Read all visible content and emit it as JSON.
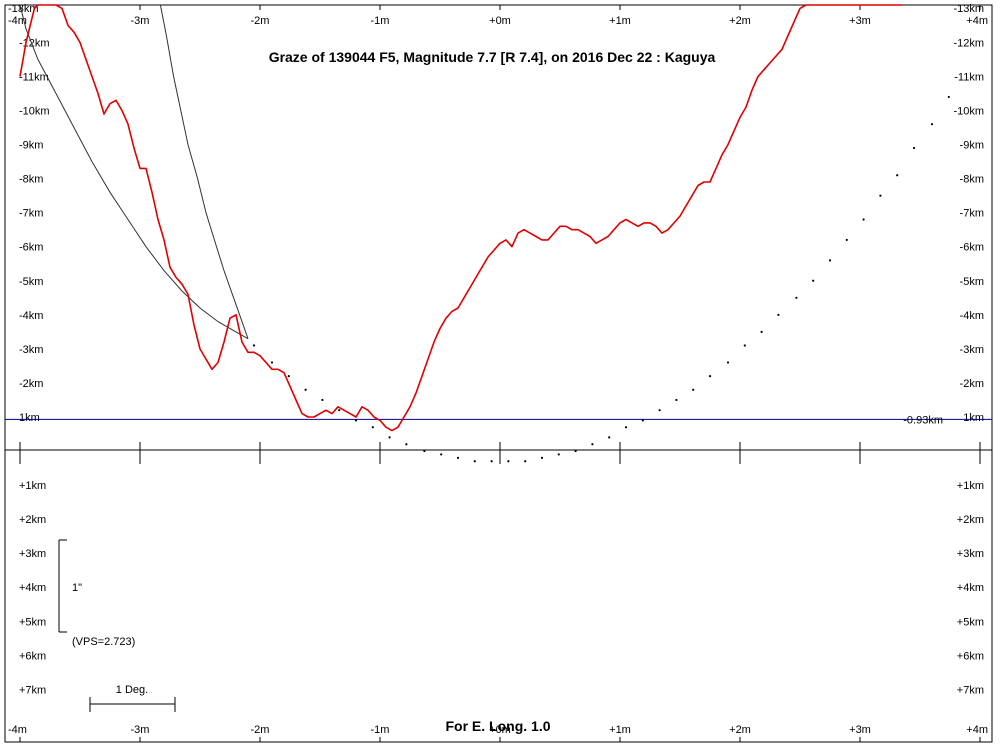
{
  "chart_data": {
    "type": "line",
    "title": "Graze of  139044 F5,  Magnitude 7.7 [R 7.4],  on 2016 Dec 22  :  Kaguya",
    "footer": "For E. Long. 1.0",
    "x_tick_labels": [
      "-4m",
      "-3m",
      "-2m",
      "-1m",
      "+0m",
      "+1m",
      "+2m",
      "+3m",
      "+4m"
    ],
    "x_ticks": [
      -4,
      -3,
      -2,
      -1,
      0,
      1,
      2,
      3,
      4
    ],
    "xlim": [
      -4,
      4
    ],
    "upper_y_tick_labels": [
      "-13km",
      "-12km",
      "-11km",
      "-10km",
      "-9km",
      "-8km",
      "-7km",
      "-6km",
      "-5km",
      "-4km",
      "-3km",
      "-2km",
      "1km"
    ],
    "upper_y_ticks": [
      13,
      12,
      11,
      10,
      9,
      8,
      7,
      6,
      5,
      4,
      3,
      2,
      1
    ],
    "lower_y_tick_labels": [
      "+1km",
      "+2km",
      "+3km",
      "+4km",
      "+5km",
      "+6km",
      "+7km"
    ],
    "lower_y_ticks": [
      -1,
      -2,
      -3,
      -4,
      -5,
      -6,
      -7
    ],
    "ylim": [
      -7.9,
      13.1
    ],
    "reference_line": {
      "y_km": 0.93,
      "label": "-0.93km"
    },
    "scale_annotation": {
      "label": "1\"",
      "vps_label": "(VPS=2.723)"
    },
    "deg_scale_label": "1 Deg.",
    "limb_profile": {
      "name": "lunar limb profile",
      "color": "#e00000",
      "x": [
        -4.0,
        -3.95,
        -3.88,
        -3.85,
        -3.8,
        -3.75,
        -3.7,
        -3.65,
        -3.6,
        -3.55,
        -3.5,
        -3.45,
        -3.4,
        -3.35,
        -3.3,
        -3.25,
        -3.2,
        -3.15,
        -3.1,
        -3.05,
        -3.0,
        -2.95,
        -2.9,
        -2.85,
        -2.8,
        -2.75,
        -2.7,
        -2.65,
        -2.6,
        -2.55,
        -2.5,
        -2.45,
        -2.4,
        -2.35,
        -2.3,
        -2.25,
        -2.2,
        -2.15,
        -2.1,
        -2.05,
        -2.0,
        -1.95,
        -1.9,
        -1.85,
        -1.8,
        -1.75,
        -1.7,
        -1.65,
        -1.6,
        -1.55,
        -1.5,
        -1.45,
        -1.4,
        -1.35,
        -1.3,
        -1.25,
        -1.2,
        -1.15,
        -1.1,
        -1.05,
        -1.0,
        -0.95,
        -0.9,
        -0.85,
        -0.8,
        -0.75,
        -0.7,
        -0.65,
        -0.6,
        -0.55,
        -0.5,
        -0.45,
        -0.4,
        -0.35,
        -0.3,
        -0.25,
        -0.2,
        -0.15,
        -0.1,
        -0.05,
        0.0,
        0.05,
        0.1,
        0.15,
        0.2,
        0.25,
        0.3,
        0.35,
        0.4,
        0.45,
        0.5,
        0.55,
        0.6,
        0.65,
        0.7,
        0.75,
        0.8,
        0.85,
        0.9,
        0.95,
        1.0,
        1.05,
        1.1,
        1.15,
        1.2,
        1.25,
        1.3,
        1.35,
        1.4,
        1.45,
        1.5,
        1.55,
        1.6,
        1.65,
        1.7,
        1.75,
        1.8,
        1.85,
        1.9,
        1.95,
        2.0,
        2.05,
        2.1,
        2.15,
        2.2,
        2.25,
        2.3,
        2.35,
        2.4,
        2.45,
        2.5,
        2.55,
        2.6,
        2.65,
        2.7,
        2.75,
        2.8,
        2.85,
        2.9,
        2.95,
        3.0,
        3.05,
        3.1,
        3.15,
        3.2,
        3.25,
        3.3,
        3.35
      ],
      "y": [
        11.0,
        12.0,
        13.0,
        13.1,
        13.1,
        13.1,
        13.1,
        13.0,
        12.5,
        12.3,
        12.0,
        11.5,
        11.0,
        10.5,
        9.9,
        10.2,
        10.3,
        10.0,
        9.6,
        8.9,
        8.3,
        8.3,
        7.6,
        6.8,
        6.2,
        5.4,
        5.1,
        4.9,
        4.6,
        3.7,
        3.0,
        2.7,
        2.4,
        2.6,
        3.2,
        3.9,
        4.0,
        3.2,
        2.9,
        2.9,
        2.8,
        2.6,
        2.4,
        2.4,
        2.3,
        1.9,
        1.5,
        1.1,
        1.0,
        1.0,
        1.1,
        1.2,
        1.1,
        1.3,
        1.2,
        1.1,
        1.0,
        1.3,
        1.2,
        1.0,
        0.9,
        0.7,
        0.6,
        0.7,
        1.0,
        1.3,
        1.7,
        2.2,
        2.7,
        3.2,
        3.6,
        3.9,
        4.1,
        4.2,
        4.5,
        4.8,
        5.1,
        5.4,
        5.7,
        5.9,
        6.1,
        6.2,
        6.0,
        6.4,
        6.5,
        6.4,
        6.3,
        6.2,
        6.2,
        6.4,
        6.6,
        6.6,
        6.5,
        6.5,
        6.4,
        6.3,
        6.1,
        6.2,
        6.3,
        6.5,
        6.7,
        6.8,
        6.7,
        6.6,
        6.7,
        6.7,
        6.6,
        6.4,
        6.5,
        6.7,
        6.9,
        7.2,
        7.5,
        7.8,
        7.9,
        7.9,
        8.3,
        8.7,
        9.0,
        9.4,
        9.8,
        10.1,
        10.6,
        11.0,
        11.2,
        11.4,
        11.6,
        11.8,
        12.2,
        12.6,
        13.0,
        13.1,
        13.1,
        13.1,
        13.1,
        13.1,
        13.1,
        13.1,
        13.1,
        13.1,
        13.1,
        13.1,
        13.1,
        13.1,
        13.1,
        13.1,
        13.1,
        13.1
      ]
    },
    "dotted_curve": {
      "name": "dotted limb curve",
      "color": "#000000",
      "x": [
        -2.05,
        -1.9,
        -1.76,
        -1.62,
        -1.48,
        -1.34,
        -1.2,
        -1.06,
        -0.92,
        -0.78,
        -0.63,
        -0.49,
        -0.35,
        -0.21,
        -0.07,
        0.07,
        0.21,
        0.35,
        0.49,
        0.63,
        0.77,
        0.91,
        1.05,
        1.19,
        1.33,
        1.47,
        1.61,
        1.75,
        1.9,
        2.04,
        2.18,
        2.32,
        2.47,
        2.61,
        2.75,
        2.89,
        3.03,
        3.17,
        3.31,
        3.45,
        3.6,
        3.74
      ],
      "y": [
        3.1,
        2.6,
        2.2,
        1.8,
        1.5,
        1.2,
        0.9,
        0.7,
        0.4,
        0.2,
        0.0,
        -0.1,
        -0.2,
        -0.3,
        -0.3,
        -0.3,
        -0.3,
        -0.2,
        -0.1,
        0.0,
        0.2,
        0.4,
        0.7,
        0.9,
        1.2,
        1.5,
        1.8,
        2.2,
        2.6,
        3.1,
        3.5,
        4.0,
        4.5,
        5.0,
        5.6,
        6.2,
        6.8,
        7.5,
        8.1,
        8.9,
        9.6,
        10.4
      ]
    },
    "black_curve_1": {
      "name": "black curve",
      "color": "#000000",
      "x": [
        -4.0,
        -3.95,
        -3.85,
        -3.7,
        -3.55,
        -3.4,
        -3.25,
        -3.1,
        -2.95,
        -2.8,
        -2.65,
        -2.5,
        -2.35,
        -2.2,
        -2.1
      ],
      "y": [
        13.1,
        12.4,
        11.5,
        10.5,
        9.5,
        8.5,
        7.6,
        6.8,
        6.0,
        5.3,
        4.7,
        4.2,
        3.8,
        3.5,
        3.3
      ]
    },
    "black_curve_2": {
      "name": "black curve",
      "color": "#000000",
      "x": [
        -2.83,
        -2.78,
        -2.72,
        -2.66,
        -2.6,
        -2.52,
        -2.45,
        -2.38,
        -2.3,
        -2.22,
        -2.15,
        -2.1
      ],
      "y": [
        13.1,
        12.2,
        11.0,
        10.0,
        9.0,
        8.0,
        7.0,
        6.2,
        5.3,
        4.5,
        3.8,
        3.3
      ]
    },
    "grid": false
  }
}
